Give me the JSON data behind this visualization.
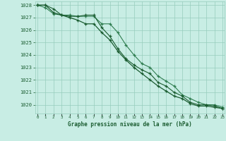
{
  "title": "Graphe pression niveau de la mer (hPa)",
  "bg_color": "#c8ede4",
  "grid_color": "#96ccbc",
  "line_color_dark": "#1a5c30",
  "line_color_mid": "#2e7d4f",
  "x_labels": [
    "0",
    "1",
    "2",
    "3",
    "4",
    "5",
    "6",
    "7",
    "8",
    "9",
    "10",
    "11",
    "12",
    "13",
    "14",
    "15",
    "16",
    "17",
    "18",
    "19",
    "20",
    "21",
    "22",
    "23"
  ],
  "ylim": [
    1019.3,
    1028.3
  ],
  "yticks": [
    1020,
    1021,
    1022,
    1023,
    1024,
    1025,
    1026,
    1027,
    1028
  ],
  "series1": [
    1028.0,
    1028.0,
    1027.7,
    1027.2,
    1027.1,
    1027.1,
    1027.2,
    1027.2,
    1026.2,
    1025.5,
    1024.5,
    1023.7,
    1023.2,
    1022.8,
    1022.5,
    1021.8,
    1021.5,
    1021.0,
    1020.7,
    1020.2,
    1020.0,
    1020.0,
    1019.9,
    1019.7
  ],
  "series2": [
    1028.0,
    1027.8,
    1027.3,
    1027.2,
    1027.2,
    1027.1,
    1027.1,
    1027.1,
    1026.5,
    1026.5,
    1025.8,
    1024.8,
    1024.0,
    1023.3,
    1023.0,
    1022.3,
    1021.9,
    1021.5,
    1020.8,
    1020.5,
    1020.2,
    1020.0,
    1020.0,
    1019.8
  ],
  "series3": [
    1028.0,
    1028.0,
    1027.4,
    1027.2,
    1027.0,
    1026.8,
    1026.5,
    1026.5,
    1025.8,
    1025.2,
    1024.3,
    1023.6,
    1023.0,
    1022.5,
    1022.0,
    1021.5,
    1021.1,
    1020.7,
    1020.5,
    1020.1,
    1019.9,
    1019.9,
    1019.8,
    1019.7
  ]
}
